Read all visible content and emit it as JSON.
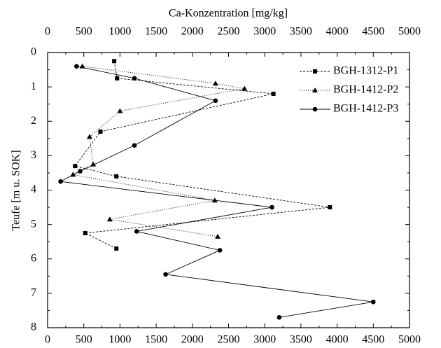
{
  "chart_data": {
    "type": "scatter",
    "title": "Ca-Konzentration [mg/kg]",
    "y_label": "Teufe [m u. SOK]",
    "xlim": [
      0,
      5000
    ],
    "xticks": [
      0,
      500,
      1000,
      1500,
      2000,
      2500,
      3000,
      3500,
      4000,
      4500,
      5000
    ],
    "ylim": [
      0,
      8
    ],
    "yticks": [
      0,
      1,
      2,
      3,
      4,
      5,
      6,
      7,
      8
    ],
    "y_inverted": true,
    "legend": "upper right",
    "series": [
      {
        "name": "BGH-1312-P1",
        "color": "#000000",
        "marker": "square",
        "line": "dashed",
        "x": [
          920,
          960,
          3120,
          730,
          380,
          950,
          3900,
          520,
          950
        ],
        "y": [
          0.25,
          0.75,
          1.2,
          2.3,
          3.3,
          3.6,
          4.5,
          5.25,
          5.7
        ]
      },
      {
        "name": "BGH-1412-P2",
        "color": "#000000",
        "marker": "triangle",
        "line": "dotted",
        "x": [
          480,
          2320,
          2720,
          1000,
          580,
          630,
          350,
          2310,
          860,
          2350
        ],
        "y": [
          0.4,
          0.9,
          1.05,
          1.7,
          2.45,
          3.25,
          3.55,
          4.3,
          4.85,
          5.35
        ]
      },
      {
        "name": "BGH-1412-P3",
        "color": "#000000",
        "marker": "circle",
        "line": "solid",
        "x": [
          400,
          1200,
          2320,
          1200,
          450,
          180,
          3100,
          1230,
          2380,
          1630,
          4500,
          3200
        ],
        "y": [
          0.4,
          0.75,
          1.4,
          2.7,
          3.45,
          3.75,
          4.5,
          5.2,
          5.75,
          6.45,
          7.25,
          7.7
        ]
      }
    ]
  }
}
